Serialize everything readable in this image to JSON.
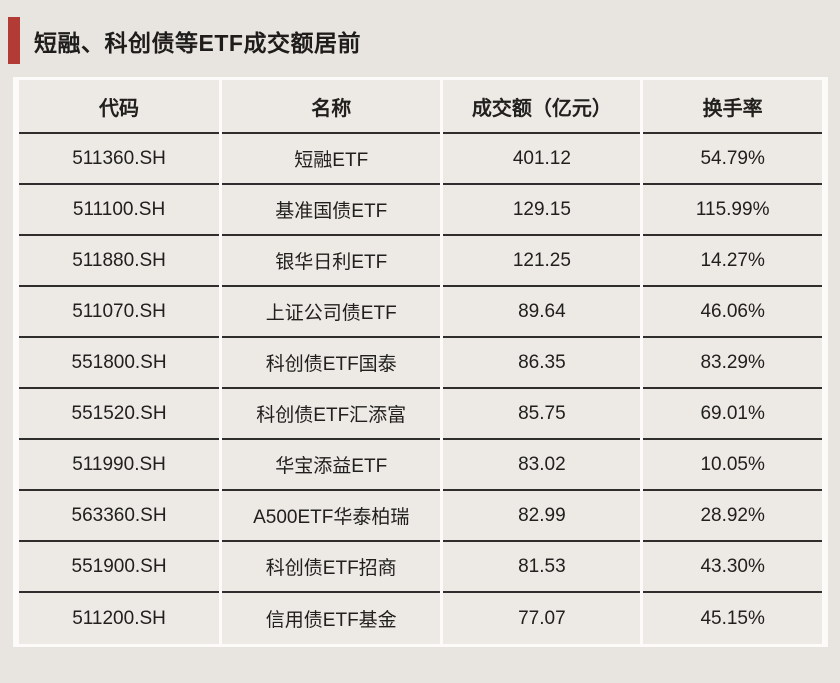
{
  "header": {
    "title": "短融、科创债等ETF成交额居前"
  },
  "colors": {
    "accent_red": "#b23b35",
    "page_background": "#e8e5e0",
    "cell_background": "#edeae5",
    "separator_white": "#fcfbf9",
    "row_line_dark": "#2f2e2c"
  },
  "chart_data": {
    "type": "table",
    "title": "短融、科创债等ETF成交额居前",
    "columns": [
      "代码",
      "名称",
      "成交额（亿元）",
      "换手率"
    ],
    "rows": [
      [
        "511360.SH",
        "短融ETF",
        "401.12",
        "54.79%"
      ],
      [
        "511100.SH",
        "基准国债ETF",
        "129.15",
        "115.99%"
      ],
      [
        "511880.SH",
        "银华日利ETF",
        "121.25",
        "14.27%"
      ],
      [
        "511070.SH",
        "上证公司债ETF",
        "89.64",
        "46.06%"
      ],
      [
        "551800.SH",
        "科创债ETF国泰",
        "86.35",
        "83.29%"
      ],
      [
        "551520.SH",
        "科创债ETF汇添富",
        "85.75",
        "69.01%"
      ],
      [
        "511990.SH",
        "华宝添益ETF",
        "83.02",
        "10.05%"
      ],
      [
        "563360.SH",
        "A500ETF华泰柏瑞",
        "82.99",
        "28.92%"
      ],
      [
        "551900.SH",
        "科创债ETF招商",
        "81.53",
        "43.30%"
      ],
      [
        "511200.SH",
        "信用债ETF基金",
        "77.07",
        "45.15%"
      ]
    ]
  }
}
